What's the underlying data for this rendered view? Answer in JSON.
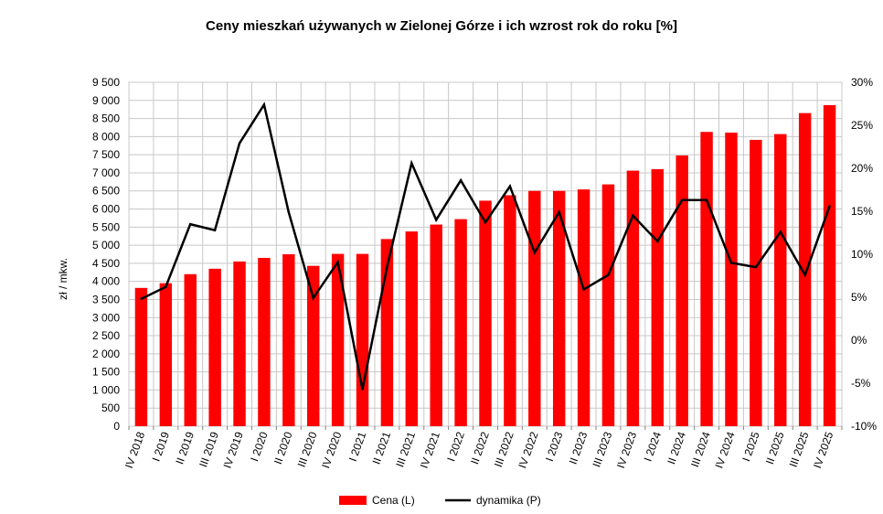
{
  "chart_data": {
    "type": "bar",
    "title": "Ceny mieszkań używanych w Zielonej Górze i ich wzrost rok do roku [%]",
    "ylabel": "zł / mkw.",
    "ylabel_right": "",
    "categories": [
      "IV 2018",
      "I 2019",
      "II 2019",
      "III 2019",
      "IV 2019",
      "I 2020",
      "II 2020",
      "III 2020",
      "IV 2020",
      "I 2021",
      "II 2021",
      "III 2021",
      "IV 2021",
      "I 2022",
      "II 2022",
      "III 2022",
      "IV 2022",
      "I 2023",
      "II 2023",
      "III 2023",
      "IV 2023",
      "I 2024",
      "II 2024",
      "III 2024",
      "IV 2024",
      "I 2025",
      "II 2025",
      "III 2025",
      "IV 2025"
    ],
    "y_ticks": [
      "0",
      "500",
      "1 000",
      "1 500",
      "2 000",
      "2 500",
      "3 000",
      "3 500",
      "4 000",
      "4 500",
      "5 000",
      "5 500",
      "6 000",
      "6 500",
      "7 000",
      "7 500",
      "8 000",
      "8 500",
      "9 000",
      "9 500"
    ],
    "y2_ticks": [
      "-10%",
      "-5%",
      "0%",
      "5%",
      "10%",
      "15%",
      "20%",
      "25%",
      "30%"
    ],
    "ylim": [
      0,
      9500
    ],
    "y2lim": [
      -10,
      30
    ],
    "grid": true,
    "legend_position": "bottom",
    "series": [
      {
        "name": "Cena (L)",
        "kind": "bar",
        "axis": "left",
        "color": "#ff0000",
        "values": [
          3820,
          3950,
          4200,
          4350,
          4550,
          4650,
          4750,
          4430,
          4760,
          4760,
          5170,
          5380,
          5570,
          5720,
          6230,
          6380,
          6500,
          6500,
          6540,
          6680,
          7060,
          7100,
          7480,
          8130,
          8110,
          7910,
          8070,
          8650,
          8870
        ]
      },
      {
        "name": "dynamika (P)",
        "kind": "line",
        "axis": "right",
        "color": "#000000",
        "values": [
          4.8,
          6.2,
          13.5,
          12.8,
          22.9,
          27.4,
          14.9,
          4.9,
          9.1,
          -5.7,
          8.5,
          20.6,
          14.0,
          18.6,
          13.7,
          17.9,
          10.2,
          14.9,
          5.9,
          7.6,
          14.5,
          11.5,
          16.3,
          16.3,
          9.0,
          8.5,
          12.6,
          7.6,
          15.6
        ]
      }
    ]
  }
}
